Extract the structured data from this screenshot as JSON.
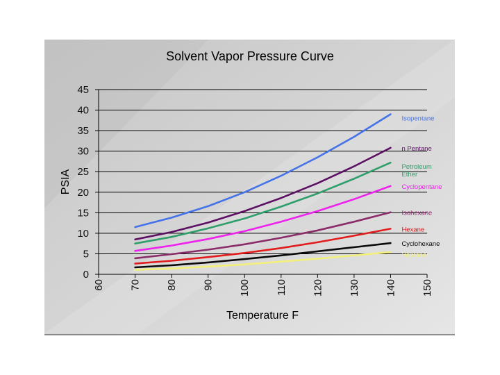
{
  "chart_data": {
    "type": "line",
    "title": "Solvent Vapor Pressure Curve",
    "xlabel": "Temperature F",
    "ylabel": "PSIA",
    "xlim": [
      60,
      150
    ],
    "ylim": [
      0,
      45
    ],
    "xticks": [
      "60",
      "70",
      "80",
      "90",
      "100",
      "110",
      "120",
      "130",
      "140",
      "150"
    ],
    "yticks": [
      "0",
      "5",
      "10",
      "15",
      "20",
      "25",
      "30",
      "35",
      "40",
      "45"
    ],
    "grid": "horizontal",
    "legend": "right, labels at line ends",
    "x": [
      70,
      80,
      90,
      100,
      110,
      120,
      130,
      140
    ],
    "series": [
      {
        "name": "Isopentane",
        "color": "#4472e8",
        "values": [
          11.5,
          13.8,
          16.6,
          20.0,
          24.0,
          28.5,
          33.5,
          39.0
        ]
      },
      {
        "name": "n Pentane",
        "color": "#5c0f63",
        "values": [
          8.5,
          10.3,
          12.6,
          15.4,
          18.6,
          22.2,
          26.3,
          30.8
        ]
      },
      {
        "name": "Petroleum Ether",
        "color": "#2e9e6a",
        "values": [
          7.5,
          9.1,
          11.2,
          13.6,
          16.5,
          19.7,
          23.3,
          27.2
        ]
      },
      {
        "name": "Cyclopentane",
        "color": "#ee22ee",
        "values": [
          5.7,
          7.0,
          8.6,
          10.5,
          12.8,
          15.4,
          18.3,
          21.5
        ]
      },
      {
        "name": "Isohexane",
        "color": "#8b2c6a",
        "values": [
          3.9,
          4.9,
          6.0,
          7.3,
          8.9,
          10.7,
          12.8,
          15.1
        ]
      },
      {
        "name": "Hexane",
        "color": "#e21c1c",
        "values": [
          2.6,
          3.3,
          4.2,
          5.2,
          6.4,
          7.8,
          9.4,
          11.1
        ]
      },
      {
        "name": "Cyclohexane",
        "color": "#0a0a0a",
        "values": [
          1.7,
          2.2,
          2.9,
          3.7,
          4.6,
          5.6,
          6.6,
          7.6
        ]
      },
      {
        "name": "Heptane",
        "color": "#f2f07a",
        "values": [
          1.1,
          1.4,
          1.9,
          2.4,
          3.1,
          3.8,
          4.6,
          5.4
        ]
      }
    ]
  }
}
